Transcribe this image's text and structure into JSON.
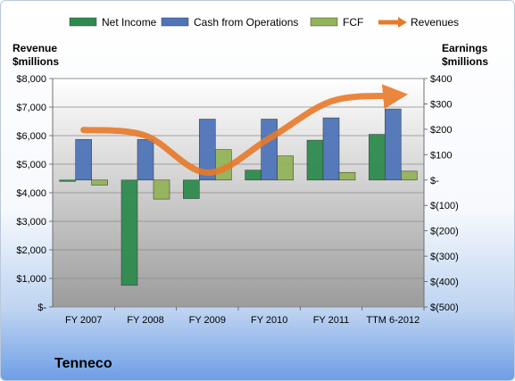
{
  "chart_data": {
    "type": "bar",
    "company": "Tenneco",
    "categories": [
      "FY 2007",
      "FY 2008",
      "FY 2009",
      "FY 2010",
      "FY 2011",
      "TTM 6-2012"
    ],
    "series": [
      {
        "name": "Net Income",
        "axis": "right",
        "kind": "bar",
        "values": [
          -5,
          -415,
          -73,
          39,
          157,
          180
        ],
        "color": "#2e8b4e"
      },
      {
        "name": "Cash from Operations",
        "axis": "right",
        "kind": "bar",
        "values": [
          160,
          160,
          240,
          240,
          245,
          280
        ],
        "color": "#4f75b8"
      },
      {
        "name": "FCF",
        "axis": "right",
        "kind": "bar",
        "values": [
          -20,
          -75,
          120,
          95,
          30,
          35
        ],
        "color": "#94b45a"
      },
      {
        "name": "Revenues",
        "axis": "left",
        "kind": "line",
        "values": [
          6200,
          6000,
          4700,
          5900,
          7200,
          7400
        ],
        "color": "#e8792a"
      }
    ],
    "left_axis": {
      "title": "Revenue\n$millions",
      "ylim": [
        0,
        8000
      ],
      "ticks": [
        {
          "value": 0,
          "label": "$-"
        },
        {
          "value": 1000,
          "label": "$1,000"
        },
        {
          "value": 2000,
          "label": "$2,000"
        },
        {
          "value": 3000,
          "label": "$3,000"
        },
        {
          "value": 4000,
          "label": "$4,000"
        },
        {
          "value": 5000,
          "label": "$5,000"
        },
        {
          "value": 6000,
          "label": "$6,000"
        },
        {
          "value": 7000,
          "label": "$7,000"
        },
        {
          "value": 8000,
          "label": "$8,000"
        }
      ]
    },
    "right_axis": {
      "title": "Earnings\n$millions",
      "ylim": [
        -500,
        400
      ],
      "ticks": [
        {
          "value": -500,
          "label": "$(500)"
        },
        {
          "value": -400,
          "label": "$(400)"
        },
        {
          "value": -300,
          "label": "$(300)"
        },
        {
          "value": -200,
          "label": "$(200)"
        },
        {
          "value": -100,
          "label": "$(100)"
        },
        {
          "value": 0,
          "label": "$-"
        },
        {
          "value": 100,
          "label": "$100"
        },
        {
          "value": 200,
          "label": "$200"
        },
        {
          "value": 300,
          "label": "$300"
        },
        {
          "value": 400,
          "label": "$400"
        }
      ]
    },
    "legend_position": "top",
    "grid": true
  }
}
